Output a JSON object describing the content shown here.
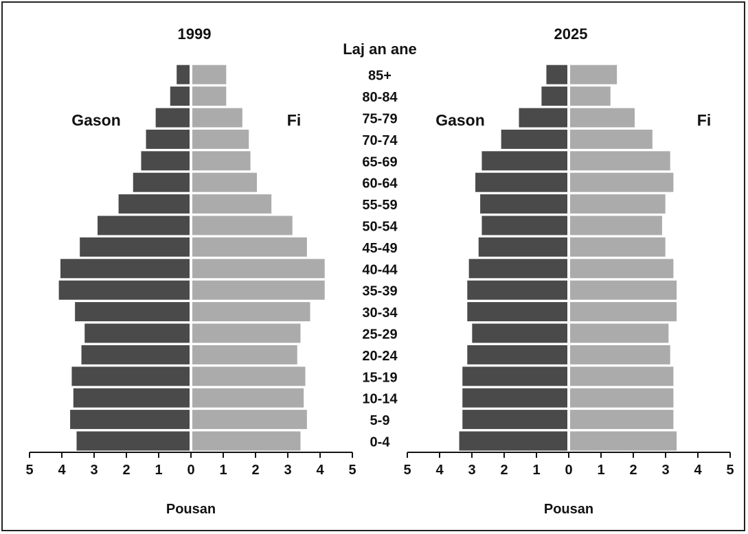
{
  "chart_data": {
    "type": "bar",
    "orientation": "horizontal-pyramid",
    "center_label": "Laj an ane",
    "categories": [
      "85+",
      "80-84",
      "75-79",
      "70-74",
      "65-69",
      "60-64",
      "55-59",
      "50-54",
      "45-49",
      "40-44",
      "35-39",
      "30-34",
      "25-29",
      "20-24",
      "15-19",
      "10-14",
      "5-9",
      "0-4"
    ],
    "colors": {
      "male": "#4a4a4a",
      "female": "#ababab"
    },
    "xlim": [
      0,
      5
    ],
    "ticks": [
      5,
      4,
      3,
      2,
      1,
      0,
      1,
      2,
      3,
      4,
      5
    ],
    "panels": [
      {
        "title": "1999",
        "xlabel": "Pousan",
        "male_label": "Gason",
        "female_label": "Fi",
        "series": [
          {
            "name": "Gason",
            "values": [
              0.4,
              0.6,
              1.05,
              1.35,
              1.5,
              1.75,
              2.2,
              2.85,
              3.4,
              4.0,
              4.05,
              3.55,
              3.25,
              3.35,
              3.65,
              3.6,
              3.7,
              3.5
            ]
          },
          {
            "name": "Fi",
            "values": [
              1.05,
              1.05,
              1.55,
              1.75,
              1.8,
              2.0,
              2.45,
              3.1,
              3.55,
              4.1,
              4.1,
              3.65,
              3.35,
              3.25,
              3.5,
              3.45,
              3.55,
              3.35
            ]
          }
        ]
      },
      {
        "title": "2025",
        "xlabel": "Pousan",
        "male_label": "Gason",
        "female_label": "Fi",
        "series": [
          {
            "name": "Gason",
            "values": [
              0.65,
              0.8,
              1.5,
              2.05,
              2.65,
              2.85,
              2.7,
              2.65,
              2.75,
              3.05,
              3.1,
              3.1,
              2.95,
              3.1,
              3.25,
              3.25,
              3.25,
              3.35
            ]
          },
          {
            "name": "Fi",
            "values": [
              1.45,
              1.25,
              2.0,
              2.55,
              3.1,
              3.2,
              2.95,
              2.85,
              2.95,
              3.2,
              3.3,
              3.3,
              3.05,
              3.1,
              3.2,
              3.2,
              3.2,
              3.3
            ]
          }
        ]
      }
    ]
  }
}
